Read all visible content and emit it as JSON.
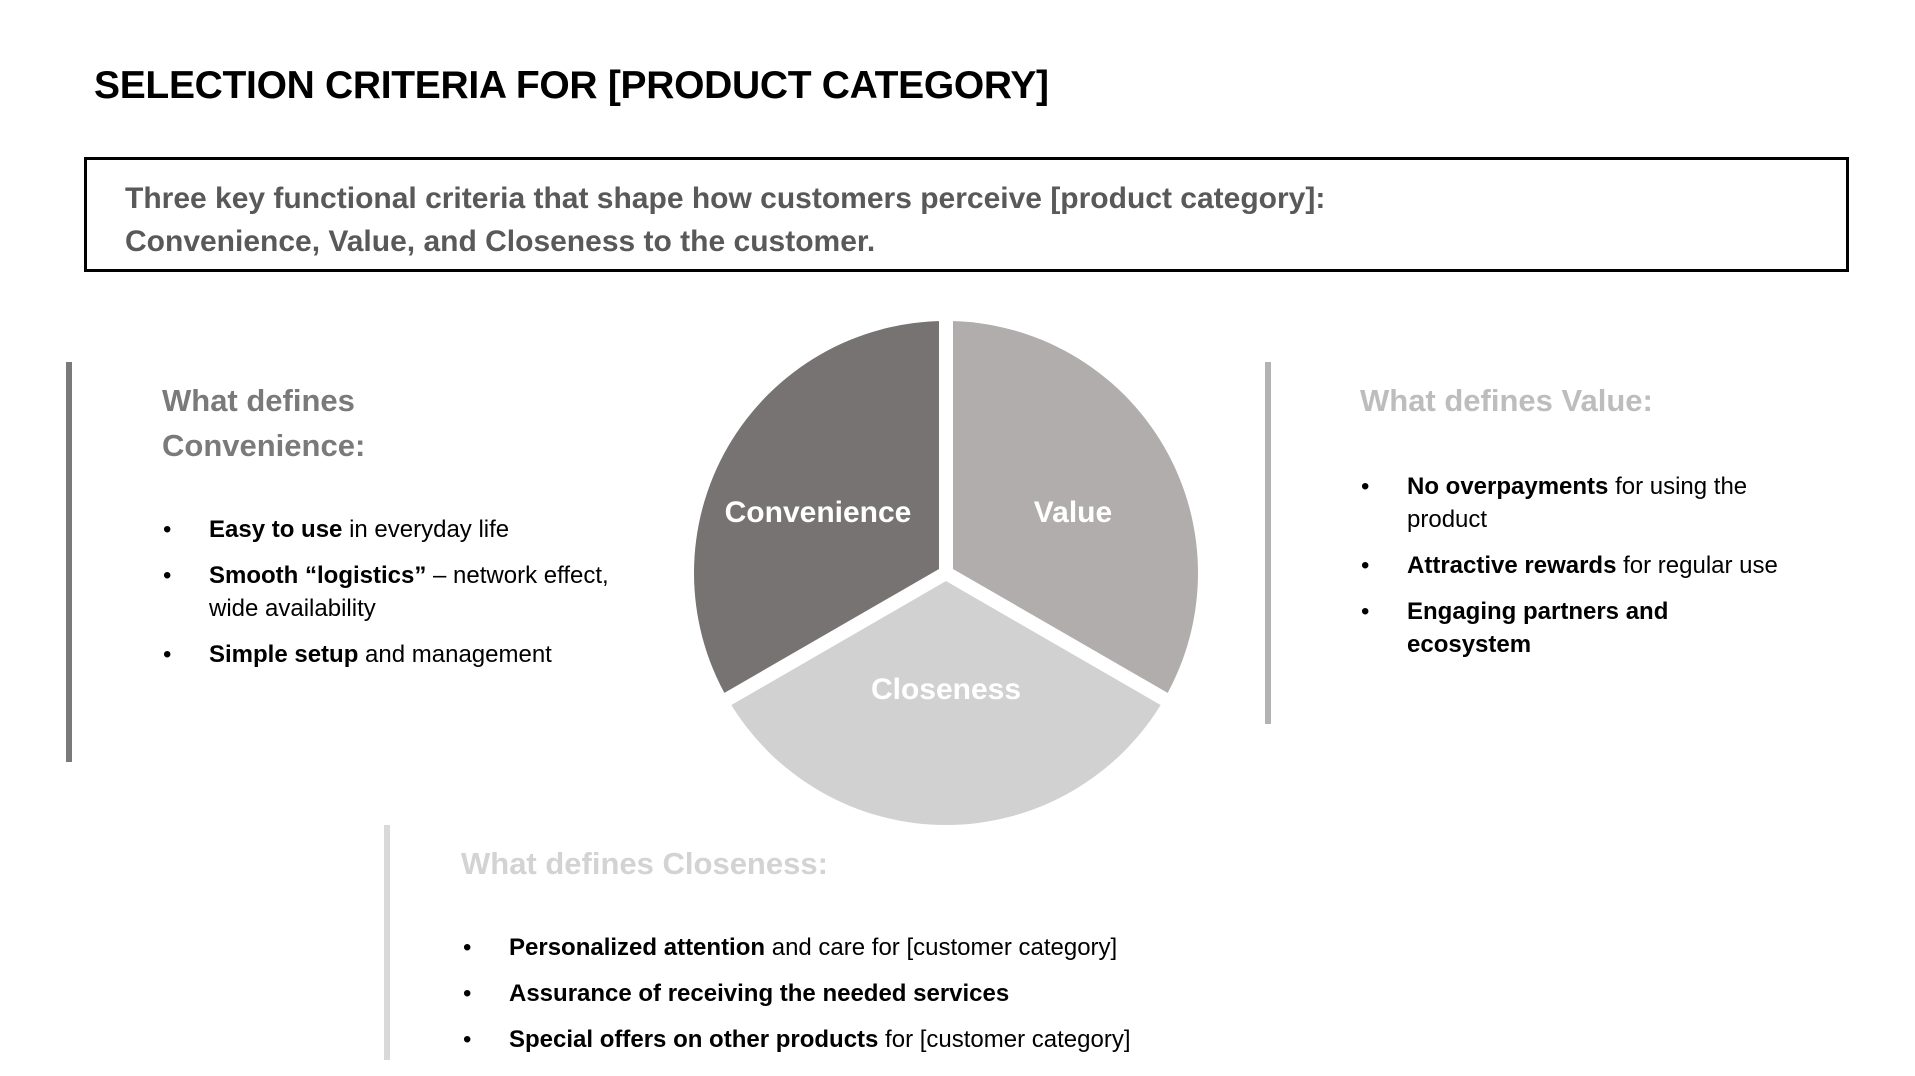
{
  "title": "SELECTION CRITERIA FOR [PRODUCT CATEGORY]",
  "summary": {
    "line1": "Three key functional criteria that shape how customers perceive [product category]:",
    "line2": "Convenience, Value, and Closeness to the customer."
  },
  "pie": {
    "segments": [
      {
        "label": "Convenience",
        "color": "#767372"
      },
      {
        "label": "Value",
        "color": "#b0adac"
      },
      {
        "label": "Closeness",
        "color": "#d2d1d1"
      }
    ]
  },
  "convenience": {
    "heading_line1": "What defines",
    "heading_line2": "Convenience:",
    "color": "#7a7a7a",
    "bar_color": "#7a7a7a",
    "bullets": [
      {
        "bold": "Easy to use",
        "text": " in everyday life"
      },
      {
        "bold": "Smooth “logistics”",
        "text": " – network effect, wide availability"
      },
      {
        "bold": "Simple setup",
        "text": " and management"
      }
    ]
  },
  "value": {
    "heading": "What defines Value:",
    "color": "#bdbdbd",
    "bar_color": "#b3b3b3",
    "bullets": [
      {
        "bold": "No overpayments",
        "text": " for using the product"
      },
      {
        "bold": "Attractive rewards",
        "text": " for regular use"
      },
      {
        "bold": "Engaging partners and ecosystem",
        "text": ""
      }
    ]
  },
  "closeness": {
    "heading": "What defines Closeness:",
    "color": "#d3d3d3",
    "bar_color": "#d9d9d9",
    "bullets": [
      {
        "bold": "Personalized attention",
        "text": " and care for [customer category]"
      },
      {
        "bold": "Assurance of receiving the needed services",
        "text": ""
      },
      {
        "bold": "Special offers on other products",
        "text": " for [customer category]"
      }
    ]
  },
  "bullet_symbol": "•"
}
